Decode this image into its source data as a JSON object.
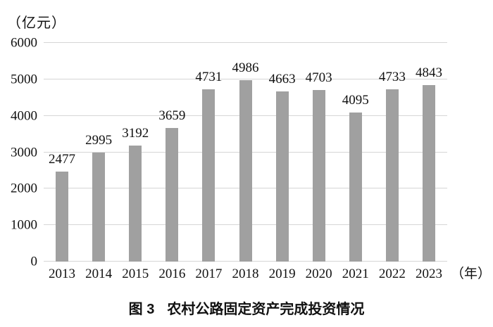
{
  "chart_data": {
    "type": "bar",
    "title": "图 3 农村公路固定资产完成投资情况",
    "unit_label": "（亿元）",
    "x_unit_label": "（年）",
    "categories": [
      "2013",
      "2014",
      "2015",
      "2016",
      "2017",
      "2018",
      "2019",
      "2020",
      "2021",
      "2022",
      "2023"
    ],
    "values": [
      2477,
      2995,
      3192,
      3659,
      4731,
      4986,
      4663,
      4703,
      4095,
      4733,
      4843
    ],
    "ylim": [
      0,
      6000
    ],
    "yticks": [
      0,
      1000,
      2000,
      3000,
      4000,
      5000,
      6000
    ],
    "grid": true,
    "legend": "none",
    "bar_color": "#a0a0a0",
    "gridline_color": "#d6d6d6",
    "text_color": "#111111"
  },
  "caption": {
    "prefix": "图 3",
    "text": "农村公路固定资产完成投资情况"
  }
}
